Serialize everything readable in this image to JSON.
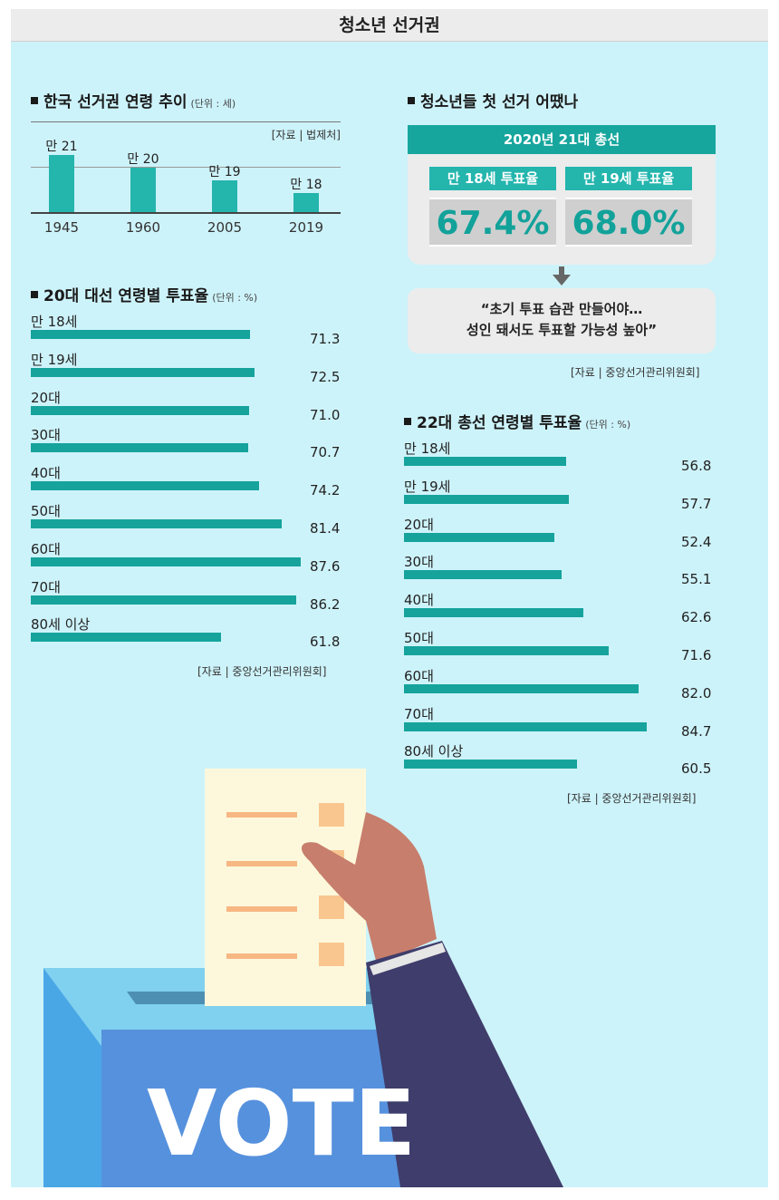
{
  "header": {
    "title": "청소년 선거권"
  },
  "sections": {
    "age_title": "한국 선거권 연령 추이",
    "age_unit": "(단위 : 세)",
    "age_source": "[자료 | 법제처]",
    "pres_title": "20대 대선 연령별 투표율",
    "pres_unit": "(단위 : %)",
    "pres_source": "[자료 | 중앙선거관리위원회]",
    "first_title": "청소년들 첫 선거 어땠나",
    "box_head": "2020년 21대 총선",
    "box_sub1": "만 18세 투표율",
    "box_sub2": "만 19세 투표율",
    "box_pct1": "67.4%",
    "box_pct2": "68.0%",
    "quote_line1": "“초기 투표 습관 만들어야…",
    "quote_line2": "성인 돼서도 투표할 가능성 높아”",
    "first_source": "[자료 | 중앙선거관리위원회]",
    "gen_title": "22대 총선 연령별 투표율",
    "gen_unit": "(단위 : %)",
    "gen_source": "[자료 | 중앙선거관리위원회]",
    "vote_text": "VOTE"
  },
  "chart_data": [
    {
      "type": "bar",
      "title": "한국 선거권 연령 추이",
      "unit": "세",
      "categories": [
        "1945",
        "1960",
        "2005",
        "2019"
      ],
      "labels": [
        "만 21",
        "만 20",
        "만 19",
        "만 18"
      ],
      "values": [
        21,
        20,
        19,
        18
      ]
    },
    {
      "type": "bar",
      "orientation": "horizontal",
      "title": "20대 대선 연령별 투표율",
      "unit": "%",
      "categories": [
        "만 18세",
        "만 19세",
        "20대",
        "30대",
        "40대",
        "50대",
        "60대",
        "70대",
        "80세 이상"
      ],
      "values": [
        71.3,
        72.5,
        71.0,
        70.7,
        74.2,
        81.4,
        87.6,
        86.2,
        61.8
      ],
      "value_labels": [
        "71.3",
        "72.5",
        "71.0",
        "70.7",
        "74.2",
        "81.4",
        "87.6",
        "86.2",
        "61.8"
      ]
    },
    {
      "type": "bar",
      "orientation": "horizontal",
      "title": "22대 총선 연령별 투표율",
      "unit": "%",
      "categories": [
        "만 18세",
        "만 19세",
        "20대",
        "30대",
        "40대",
        "50대",
        "60대",
        "70대",
        "80세 이상"
      ],
      "values": [
        56.8,
        57.7,
        52.4,
        55.1,
        62.6,
        71.6,
        82.0,
        84.7,
        60.5
      ],
      "value_labels": [
        "56.8",
        "57.7",
        "52.4",
        "55.1",
        "62.6",
        "71.6",
        "82.0",
        "84.7",
        "60.5"
      ]
    }
  ]
}
